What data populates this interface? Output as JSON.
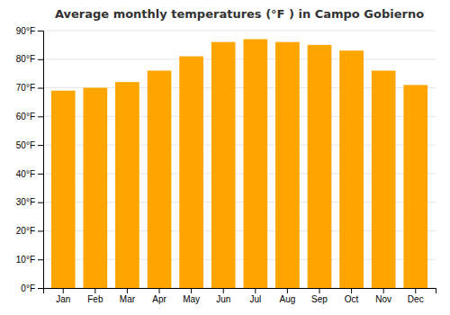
{
  "chart_data": {
    "type": "bar",
    "title": "Average monthly temperatures (°F ) in Campo Gobierno",
    "categories": [
      "Jan",
      "Feb",
      "Mar",
      "Apr",
      "May",
      "Jun",
      "Jul",
      "Aug",
      "Sep",
      "Oct",
      "Nov",
      "Dec"
    ],
    "values": [
      69,
      70,
      72,
      76,
      81,
      86,
      87,
      86,
      85,
      83,
      76,
      71
    ],
    "color": "#FFA500",
    "ylim": [
      0,
      90
    ],
    "yticks": [
      {
        "value": 0,
        "label": "0°F"
      },
      {
        "value": 10,
        "label": "10°F"
      },
      {
        "value": 20,
        "label": "20°F"
      },
      {
        "value": 30,
        "label": "30°F"
      },
      {
        "value": 40,
        "label": "40°F"
      },
      {
        "value": 50,
        "label": "50°F"
      },
      {
        "value": 60,
        "label": "60°F"
      },
      {
        "value": 70,
        "label": "70°F"
      },
      {
        "value": 80,
        "label": "80°F"
      },
      {
        "value": 90,
        "label": "90°F"
      }
    ],
    "grid": true
  }
}
